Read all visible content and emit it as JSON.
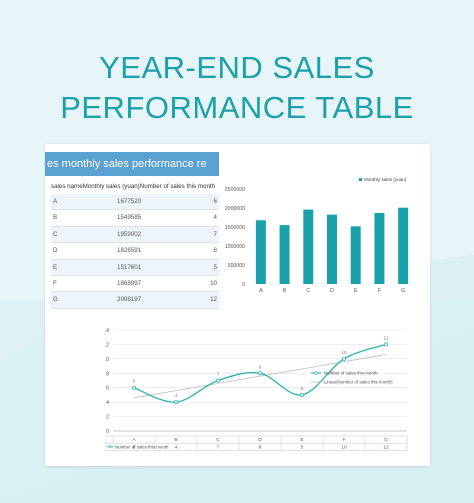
{
  "title": {
    "line1": "YEAR-END SALES",
    "line2": "PERFORMANCE TABLE"
  },
  "table": {
    "heading": "es monthly sales performance re",
    "header": "sales nameMonthly sales (yuan)Number of sales this month",
    "rows": [
      {
        "name": "A",
        "sales": "1677520",
        "count": "6"
      },
      {
        "name": "B",
        "sales": "1549585",
        "count": "4"
      },
      {
        "name": "C",
        "sales": "1959002",
        "count": "7"
      },
      {
        "name": "D",
        "sales": "1826591",
        "count": "8"
      },
      {
        "name": "E",
        "sales": "1517601",
        "count": "5"
      },
      {
        "name": "F",
        "sales": "1868997",
        "count": "10"
      },
      {
        "name": "G",
        "sales": "2008197",
        "count": "12"
      }
    ]
  },
  "chart_data": [
    {
      "type": "bar",
      "categories": [
        "A",
        "B",
        "C",
        "D",
        "E",
        "F",
        "G"
      ],
      "series": [
        {
          "name": "Monthly sales (yuan)",
          "values": [
            1677520,
            1549585,
            1959002,
            1826591,
            1517601,
            1868997,
            2008197
          ],
          "color": "#1aa1a9"
        }
      ],
      "ylim": [
        0,
        2500000
      ],
      "yticks": [
        "2500000",
        "2000000",
        "1500000",
        "1000000",
        "500000",
        "0"
      ],
      "legend_position": "top-right",
      "title": "",
      "xlabel": "",
      "ylabel": ""
    },
    {
      "type": "line",
      "categories": [
        "A",
        "B",
        "C",
        "D",
        "E",
        "F",
        "G"
      ],
      "series": [
        {
          "name": "Number of sales this month",
          "values": [
            6,
            4,
            7,
            8,
            5,
            10,
            12
          ],
          "color": "#2bb3b0"
        },
        {
          "name": "Linear(Number of sales this month)",
          "values": [
            4.6,
            5.6,
            6.6,
            7.6,
            8.6,
            9.6,
            10.6
          ],
          "color": "#bdbdbd"
        }
      ],
      "ylim": [
        0,
        14
      ],
      "yticks": [
        "14",
        "12",
        "10",
        "8",
        "6",
        "4",
        "2",
        "0"
      ],
      "data_labels": [
        "6",
        "4",
        "7",
        "8",
        "5",
        "10",
        "12"
      ],
      "table_row_label": "Number of sales this month",
      "legend_position": "right",
      "grid": true,
      "title": "",
      "xlabel": "",
      "ylabel": ""
    }
  ]
}
